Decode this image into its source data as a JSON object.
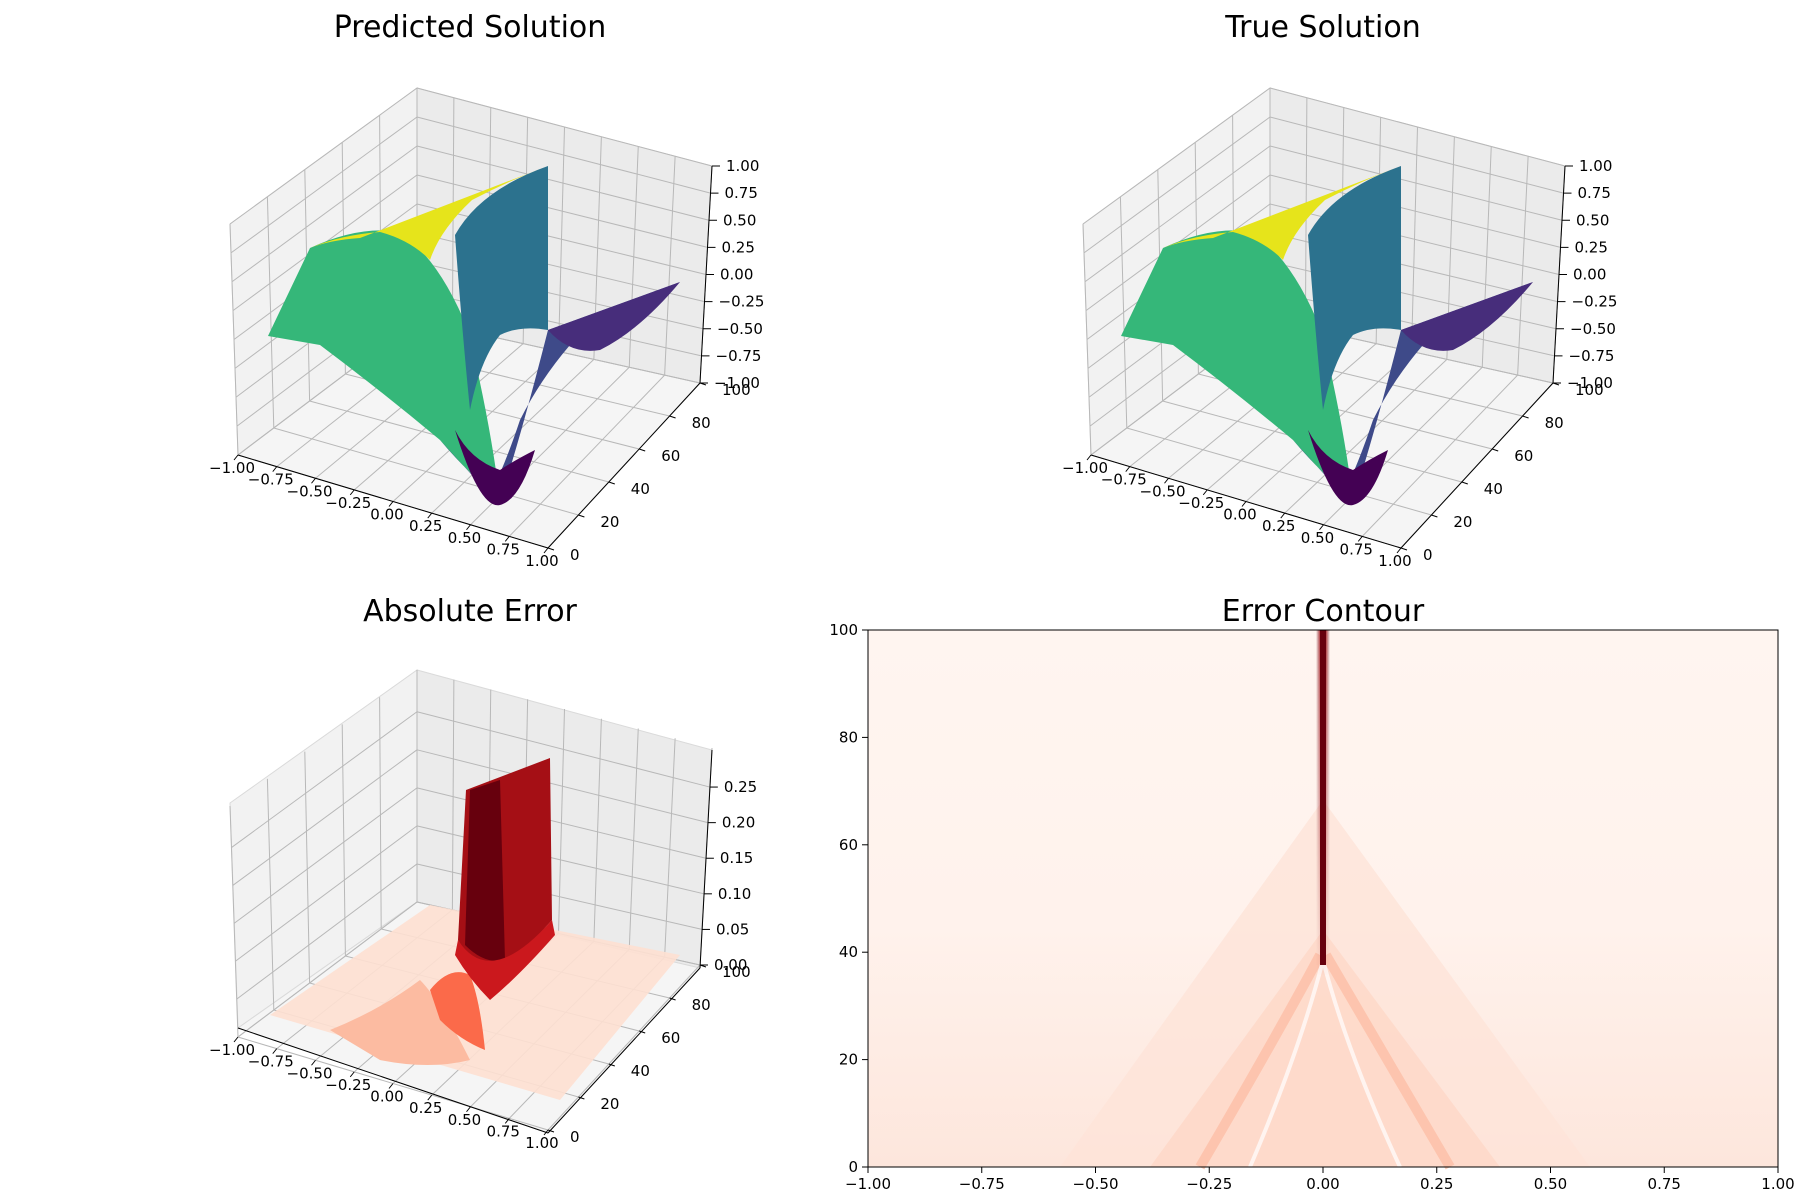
{
  "chart_data": [
    {
      "type": "surface3d",
      "title": "Predicted Solution",
      "colormap": "viridis",
      "x_ticks": [
        "−1.00",
        "−0.75",
        "−0.50",
        "−0.25",
        "0.00",
        "0.25",
        "0.50",
        "0.75",
        "1.00"
      ],
      "y_ticks": [
        "0",
        "20",
        "40",
        "60",
        "80",
        "100"
      ],
      "z_ticks": [
        "−1.00",
        "−0.75",
        "−0.50",
        "−0.25",
        "0.00",
        "0.25",
        "0.50",
        "0.75",
        "1.00"
      ],
      "xlim": [
        -1,
        1
      ],
      "ylim": [
        0,
        100
      ],
      "zlim": [
        -1,
        1
      ],
      "grid": true
    },
    {
      "type": "surface3d",
      "title": "True Solution",
      "colormap": "viridis",
      "x_ticks": [
        "−1.00",
        "−0.75",
        "−0.50",
        "−0.25",
        "0.00",
        "0.25",
        "0.50",
        "0.75",
        "1.00"
      ],
      "y_ticks": [
        "0",
        "20",
        "40",
        "60",
        "80",
        "100"
      ],
      "z_ticks": [
        "−1.00",
        "−0.75",
        "−0.50",
        "−0.25",
        "0.00",
        "0.25",
        "0.50",
        "0.75",
        "1.00"
      ],
      "xlim": [
        -1,
        1
      ],
      "ylim": [
        0,
        100
      ],
      "zlim": [
        -1,
        1
      ],
      "grid": true
    },
    {
      "type": "surface3d",
      "title": "Absolute Error",
      "colormap": "Reds",
      "x_ticks": [
        "−1.00",
        "−0.75",
        "−0.50",
        "−0.25",
        "0.00",
        "0.25",
        "0.50",
        "0.75",
        "1.00"
      ],
      "y_ticks": [
        "0",
        "20",
        "40",
        "60",
        "80",
        "100"
      ],
      "z_ticks": [
        "0.00",
        "0.05",
        "0.10",
        "0.15",
        "0.20",
        "0.25"
      ],
      "xlim": [
        -1,
        1
      ],
      "ylim": [
        0,
        100
      ],
      "zlim": [
        0,
        0.28
      ],
      "grid": true
    },
    {
      "type": "heatmap",
      "title": "Error Contour",
      "colormap": "Reds",
      "x_ticks": [
        "−1.00",
        "−0.75",
        "−0.50",
        "−0.25",
        "0.00",
        "0.25",
        "0.50",
        "0.75",
        "1.00"
      ],
      "y_ticks": [
        "0",
        "20",
        "40",
        "60",
        "80",
        "100"
      ],
      "xlim": [
        -1,
        1
      ],
      "ylim": [
        0,
        100
      ],
      "grid": false
    }
  ]
}
